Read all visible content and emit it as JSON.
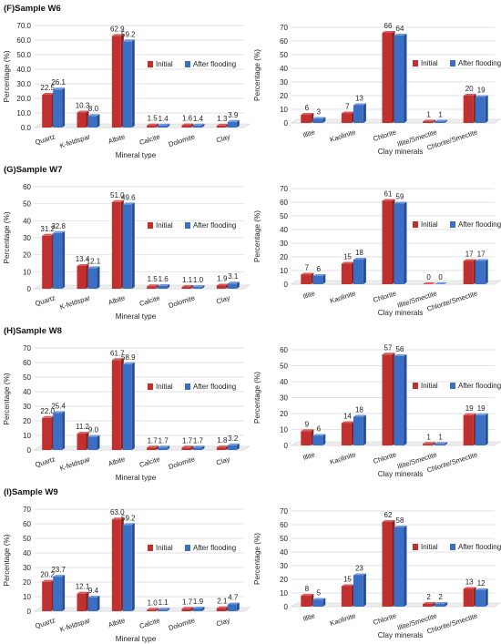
{
  "colors": {
    "initial": "#c0302f",
    "after": "#3a6fc4",
    "initial_dark": "#8e1f1f",
    "after_dark": "#264f95"
  },
  "legend": {
    "initial": "Initial",
    "after": "After flooding"
  },
  "chart_data": [
    {
      "type": "bar",
      "title": "(F)Sample W6",
      "xlabel": "Mineral type",
      "ylabel": "Percentage (%)",
      "categories": [
        "Quartz",
        "K-feldspar",
        "Albite",
        "Calcite",
        "Dolomite",
        "Clay"
      ],
      "series": [
        {
          "name": "Initial",
          "values": [
            22.5,
            10.3,
            62.9,
            1.5,
            1.6,
            1.3
          ]
        },
        {
          "name": "After flooding",
          "values": [
            26.1,
            8.0,
            59.2,
            1.4,
            1.4,
            3.9
          ]
        }
      ],
      "ylim": [
        0,
        70
      ],
      "yticks": [
        "0.0",
        "10.0",
        "20.0",
        "30.0",
        "40.0",
        "50.0",
        "60.0",
        "70.0"
      ],
      "value_labels": [
        [
          "22.5",
          "10.3",
          "62.9",
          "1.5",
          "1.6",
          "1.3"
        ],
        [
          "26.1",
          "8.0",
          "59.2",
          "1.4",
          "1.4",
          "3.9"
        ]
      ]
    },
    {
      "type": "bar",
      "title": "",
      "xlabel": "Clay minerals",
      "ylabel": "Percentage (%)",
      "categories": [
        "Illite",
        "Kaolinite",
        "Chlorite",
        "Illite/Smectite",
        "Chlorite/Smectite"
      ],
      "series": [
        {
          "name": "Initial",
          "values": [
            6,
            7,
            66,
            1,
            20
          ]
        },
        {
          "name": "After flooding",
          "values": [
            3,
            13,
            64,
            1,
            19
          ]
        }
      ],
      "ylim": [
        0,
        70
      ],
      "yticks": [
        "0",
        "10",
        "20",
        "30",
        "40",
        "50",
        "60",
        "70"
      ],
      "value_labels": [
        [
          "6",
          "7",
          "66",
          "1",
          "20"
        ],
        [
          "3",
          "13",
          "64",
          "1",
          "19"
        ]
      ]
    },
    {
      "type": "bar",
      "title": "(G)Sample W7",
      "xlabel": "Mineral type",
      "ylabel": "Percentage (%)",
      "categories": [
        "Quartz",
        "K-feldspar",
        "Albite",
        "Calcite",
        "Dolomite",
        "Clay"
      ],
      "series": [
        {
          "name": "Initial",
          "values": [
            31.2,
            13.4,
            51.0,
            1.5,
            1.1,
            1.9
          ]
        },
        {
          "name": "After flooding",
          "values": [
            32.8,
            12.1,
            49.6,
            1.6,
            1.0,
            3.1
          ]
        }
      ],
      "ylim": [
        0,
        60
      ],
      "yticks": [
        "0",
        "10",
        "20",
        "30",
        "40",
        "50",
        "60"
      ],
      "value_labels": [
        [
          "31.2",
          "13.4",
          "51.0",
          "1.5",
          "1.1",
          "1.9"
        ],
        [
          "32.8",
          "12.1",
          "49.6",
          "1.6",
          "1.0",
          "3.1"
        ]
      ]
    },
    {
      "type": "bar",
      "title": "",
      "xlabel": "Clay minerals",
      "ylabel": "Percentage (%)",
      "categories": [
        "Illite",
        "Kaolinite",
        "Chlorite",
        "Illite/Smectite",
        "Chlorite/Smectite"
      ],
      "series": [
        {
          "name": "Initial",
          "values": [
            7,
            15,
            61,
            0,
            17
          ]
        },
        {
          "name": "After flooding",
          "values": [
            6,
            18,
            59,
            0,
            17
          ]
        }
      ],
      "ylim": [
        0,
        70
      ],
      "yticks": [
        "0",
        "10",
        "20",
        "30",
        "40",
        "50",
        "60",
        "70"
      ],
      "value_labels": [
        [
          "7",
          "15",
          "61",
          "0",
          "17"
        ],
        [
          "6",
          "18",
          "59",
          "0",
          "17"
        ]
      ]
    },
    {
      "type": "bar",
      "title": "(H)Sample W8",
      "xlabel": "Mineral type",
      "ylabel": "Percentage (%)",
      "categories": [
        "Quartz",
        "K-feldspar",
        "Albite",
        "Calcite",
        "Dolomite",
        "Clay"
      ],
      "series": [
        {
          "name": "Initial",
          "values": [
            22.0,
            11.2,
            61.7,
            1.7,
            1.7,
            1.8
          ]
        },
        {
          "name": "After flooding",
          "values": [
            25.4,
            9.0,
            58.9,
            1.7,
            1.7,
            3.2
          ]
        }
      ],
      "ylim": [
        0,
        70
      ],
      "yticks": [
        "0",
        "10",
        "20",
        "30",
        "40",
        "50",
        "60",
        "70"
      ],
      "value_labels": [
        [
          "22.0",
          "11.2",
          "61.7",
          "1.7",
          "1.7",
          "1.8"
        ],
        [
          "25.4",
          "9.0",
          "58.9",
          "1.7",
          "1.7",
          "3.2"
        ]
      ]
    },
    {
      "type": "bar",
      "title": "",
      "xlabel": "Clay minerals",
      "ylabel": "Percentage (%)",
      "categories": [
        "Illite",
        "Kaolinite",
        "Chlorite",
        "Illite/Smectite",
        "Chlorite/Smectite"
      ],
      "series": [
        {
          "name": "Initial",
          "values": [
            9,
            14,
            57,
            1,
            19
          ]
        },
        {
          "name": "After flooding",
          "values": [
            6,
            18,
            56,
            1,
            19
          ]
        }
      ],
      "ylim": [
        0,
        60
      ],
      "yticks": [
        "0",
        "10",
        "20",
        "30",
        "40",
        "50",
        "60"
      ],
      "value_labels": [
        [
          "9",
          "14",
          "57",
          "1",
          "19"
        ],
        [
          "6",
          "18",
          "56",
          "1",
          "19"
        ]
      ]
    },
    {
      "type": "bar",
      "title": "(I)Sample W9",
      "xlabel": "Mineral type",
      "ylabel": "Percentage (%)",
      "categories": [
        "Quartz",
        "K-feldspar",
        "Albite",
        "Calcite",
        "Dolomite",
        "Clay"
      ],
      "series": [
        {
          "name": "Initial",
          "values": [
            20.2,
            12.1,
            63.0,
            1.0,
            1.7,
            2.1
          ]
        },
        {
          "name": "After flooding",
          "values": [
            23.7,
            9.4,
            59.2,
            1.1,
            1.9,
            4.7
          ]
        }
      ],
      "ylim": [
        0,
        70
      ],
      "yticks": [
        "0",
        "10",
        "20",
        "30",
        "40",
        "50",
        "60",
        "70"
      ],
      "value_labels": [
        [
          "20.2",
          "12.1",
          "63.0",
          "1.0",
          "1.7",
          "2.1"
        ],
        [
          "23.7",
          "9.4",
          "59.2",
          "1.1",
          "1.9",
          "4.7"
        ]
      ]
    },
    {
      "type": "bar",
      "title": "",
      "xlabel": "Clay minerals",
      "ylabel": "Percentage (%)",
      "categories": [
        "Illite",
        "Kaolinite",
        "Chlorite",
        "Illite/Smectite",
        "Chlorite/Smectite"
      ],
      "series": [
        {
          "name": "Initial",
          "values": [
            8,
            15,
            62,
            2,
            13
          ]
        },
        {
          "name": "After flooding",
          "values": [
            5,
            23,
            58,
            2,
            12
          ]
        }
      ],
      "ylim": [
        0,
        70
      ],
      "yticks": [
        "0",
        "10",
        "20",
        "30",
        "40",
        "50",
        "60",
        "70"
      ],
      "value_labels": [
        [
          "8",
          "15",
          "62",
          "2",
          "13"
        ],
        [
          "5",
          "23",
          "58",
          "2",
          "12"
        ]
      ]
    }
  ]
}
